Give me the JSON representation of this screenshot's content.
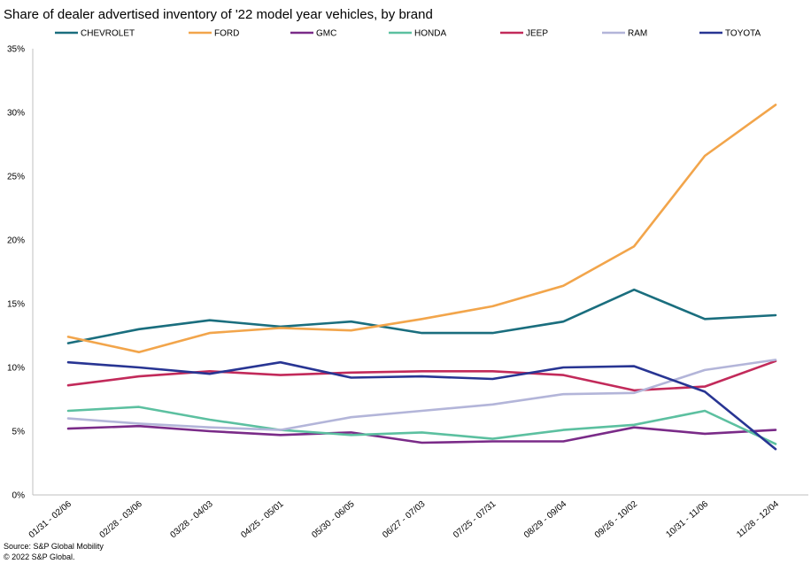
{
  "chart_data": {
    "type": "line",
    "title": "Share of dealer advertised inventory of '22 model year vehicles, by brand",
    "xlabel": "",
    "ylabel": "",
    "ylim": [
      0,
      35
    ],
    "yticks": [
      "0%",
      "5%",
      "10%",
      "15%",
      "20%",
      "25%",
      "30%",
      "35%"
    ],
    "ytick_values": [
      0,
      5,
      10,
      15,
      20,
      25,
      30,
      35
    ],
    "grid": false,
    "legend_position": "top",
    "categories": [
      "01/31 - 02/06",
      "02/28 - 03/06",
      "03/28 - 04/03",
      "04/25 - 05/01",
      "05/30 - 06/05",
      "06/27 - 07/03",
      "07/25 - 07/31",
      "08/29 - 09/04",
      "09/26 - 10/02",
      "10/31 - 11/06",
      "11/28 - 12/04"
    ],
    "series": [
      {
        "name": "CHEVROLET",
        "color": "#1a6e7e",
        "values": [
          11.9,
          13.0,
          13.7,
          13.2,
          13.6,
          12.7,
          12.7,
          13.6,
          16.1,
          13.8,
          14.1
        ]
      },
      {
        "name": "FORD",
        "color": "#f2a54b",
        "values": [
          12.4,
          11.2,
          12.7,
          13.1,
          12.9,
          13.8,
          14.8,
          16.4,
          19.5,
          26.6,
          30.6
        ]
      },
      {
        "name": "GMC",
        "color": "#7a2b88",
        "values": [
          5.2,
          5.4,
          5.0,
          4.7,
          4.9,
          4.1,
          4.2,
          4.2,
          5.3,
          4.8,
          5.1
        ]
      },
      {
        "name": "HONDA",
        "color": "#5cc0a0",
        "values": [
          6.6,
          6.9,
          5.9,
          5.1,
          4.7,
          4.9,
          4.4,
          5.1,
          5.5,
          6.6,
          4.0
        ]
      },
      {
        "name": "JEEP",
        "color": "#c22a5a",
        "values": [
          8.6,
          9.3,
          9.7,
          9.4,
          9.6,
          9.7,
          9.7,
          9.4,
          8.2,
          8.5,
          10.5
        ]
      },
      {
        "name": "RAM",
        "color": "#b3b5d9",
        "values": [
          6.0,
          5.6,
          5.3,
          5.1,
          6.1,
          6.6,
          7.1,
          7.9,
          8.0,
          9.8,
          10.6
        ]
      },
      {
        "name": "TOYOTA",
        "color": "#283593",
        "values": [
          10.4,
          10.0,
          9.5,
          10.4,
          9.2,
          9.3,
          9.1,
          10.0,
          10.1,
          8.1,
          3.6
        ]
      }
    ]
  },
  "footer": {
    "source": "Source: S&P Global Mobility",
    "copyright": "© 2022 S&P Global."
  }
}
